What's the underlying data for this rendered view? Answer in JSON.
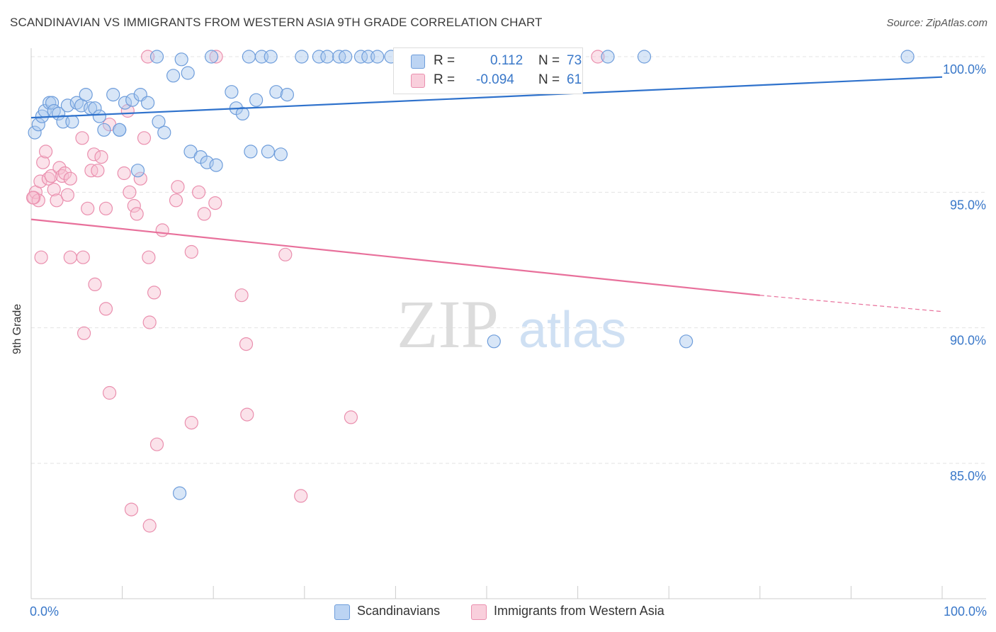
{
  "title": "SCANDINAVIAN VS IMMIGRANTS FROM WESTERN ASIA 9TH GRADE CORRELATION CHART",
  "source": "Source: ZipAtlas.com",
  "watermark": {
    "zip": "ZIP",
    "atlas": "atlas"
  },
  "legend_top": [
    {
      "r_label": "R =",
      "r_value": "0.112",
      "n_label": "N =",
      "n_value": "73"
    },
    {
      "r_label": "R =",
      "r_value": "-0.094",
      "n_label": "N =",
      "n_value": "61"
    }
  ],
  "colors": {
    "blue_fill": "#a9c7ee",
    "blue_stroke": "#6e9ddb",
    "blue_line": "#2f72cc",
    "pink_fill": "#f6bfd0",
    "pink_stroke": "#ea8fae",
    "pink_line": "#e8709b",
    "axis_text": "#3a78c9",
    "grid": "#e3e3e3"
  },
  "chart_data": {
    "type": "scatter",
    "title": "SCANDINAVIAN VS IMMIGRANTS FROM WESTERN ASIA 9TH GRADE CORRELATION CHART",
    "xlabel": "",
    "ylabel": "9th Grade",
    "xlim": [
      0,
      100
    ],
    "ylim": [
      80.5,
      100.5
    ],
    "x_tick_labels": [
      "0.0%",
      "100.0%"
    ],
    "y_ticks": [
      85,
      90,
      95,
      100
    ],
    "y_tick_labels": [
      "85.0%",
      "90.0%",
      "95.0%",
      "100.0%"
    ],
    "grid": true,
    "legend_position": "bottom",
    "series": [
      {
        "name": "Scandinavians",
        "color": "#6e9ddb",
        "trend": {
          "x": [
            0,
            100
          ],
          "y": [
            97.75,
            99.25
          ]
        },
        "points": [
          [
            0.4,
            97.2
          ],
          [
            0.8,
            97.5
          ],
          [
            1.2,
            97.8
          ],
          [
            1.5,
            98.0
          ],
          [
            2.0,
            98.3
          ],
          [
            2.3,
            98.3
          ],
          [
            2.5,
            98.0
          ],
          [
            3.0,
            97.9
          ],
          [
            3.5,
            97.6
          ],
          [
            4.0,
            98.2
          ],
          [
            4.5,
            97.6
          ],
          [
            5.0,
            98.3
          ],
          [
            5.5,
            98.2
          ],
          [
            6.0,
            98.6
          ],
          [
            6.5,
            98.1
          ],
          [
            7.0,
            98.1
          ],
          [
            7.5,
            97.8
          ],
          [
            8.0,
            97.3
          ],
          [
            9.7,
            97.3
          ],
          [
            9.7,
            97.3
          ],
          [
            9.0,
            98.6
          ],
          [
            10.3,
            98.3
          ],
          [
            11.1,
            98.4
          ],
          [
            12.0,
            98.6
          ],
          [
            12.8,
            98.3
          ],
          [
            14.0,
            97.6
          ],
          [
            14.6,
            97.2
          ],
          [
            11.7,
            95.8
          ],
          [
            15.6,
            99.3
          ],
          [
            17.2,
            99.4
          ],
          [
            17.5,
            96.5
          ],
          [
            18.6,
            96.3
          ],
          [
            19.3,
            96.1
          ],
          [
            20.3,
            96.0
          ],
          [
            22.0,
            98.7
          ],
          [
            22.5,
            98.1
          ],
          [
            23.2,
            97.9
          ],
          [
            24.1,
            96.5
          ],
          [
            24.7,
            98.4
          ],
          [
            26.0,
            96.5
          ],
          [
            26.9,
            98.7
          ],
          [
            27.4,
            96.4
          ],
          [
            28.1,
            98.6
          ],
          [
            13.8,
            100.0
          ],
          [
            16.5,
            99.9
          ],
          [
            19.8,
            100.0
          ],
          [
            23.9,
            100.0
          ],
          [
            25.3,
            100.0
          ],
          [
            26.3,
            100.0
          ],
          [
            29.7,
            100.0
          ],
          [
            31.6,
            100.0
          ],
          [
            32.5,
            100.0
          ],
          [
            33.8,
            100.0
          ],
          [
            34.5,
            100.0
          ],
          [
            36.2,
            100.0
          ],
          [
            37.0,
            100.0
          ],
          [
            38.0,
            100.0
          ],
          [
            39.5,
            100.0
          ],
          [
            41.0,
            100.0
          ],
          [
            42.5,
            100.0
          ],
          [
            43.2,
            100.0
          ],
          [
            44.3,
            100.0
          ],
          [
            47.0,
            100.0
          ],
          [
            50.8,
            100.0
          ],
          [
            52.5,
            100.0
          ],
          [
            55.0,
            100.0
          ],
          [
            59.2,
            100.0
          ],
          [
            63.3,
            100.0
          ],
          [
            67.3,
            100.0
          ],
          [
            96.2,
            100.0
          ],
          [
            50.8,
            89.5
          ],
          [
            71.9,
            89.5
          ],
          [
            16.3,
            83.9
          ]
        ]
      },
      {
        "name": "Immigrants from Western Asia",
        "color": "#ea8fae",
        "trend": {
          "x": [
            0,
            80
          ],
          "y": [
            94.0,
            91.2
          ]
        },
        "trend_dashed": {
          "x": [
            80,
            100
          ],
          "y": [
            91.2,
            90.6
          ]
        },
        "points": [
          [
            0.3,
            94.8
          ],
          [
            0.5,
            95.0
          ],
          [
            0.8,
            94.7
          ],
          [
            1.0,
            95.4
          ],
          [
            1.3,
            96.1
          ],
          [
            1.6,
            96.5
          ],
          [
            1.9,
            95.5
          ],
          [
            2.2,
            95.6
          ],
          [
            2.5,
            95.1
          ],
          [
            2.8,
            94.7
          ],
          [
            3.1,
            95.9
          ],
          [
            3.4,
            95.6
          ],
          [
            3.7,
            95.7
          ],
          [
            4.0,
            94.9
          ],
          [
            4.3,
            95.5
          ],
          [
            5.6,
            97.0
          ],
          [
            6.2,
            94.4
          ],
          [
            6.6,
            95.8
          ],
          [
            6.9,
            96.4
          ],
          [
            7.3,
            95.8
          ],
          [
            7.7,
            96.3
          ],
          [
            8.2,
            94.4
          ],
          [
            8.6,
            97.5
          ],
          [
            10.2,
            95.7
          ],
          [
            10.8,
            95.0
          ],
          [
            11.3,
            94.5
          ],
          [
            11.6,
            94.2
          ],
          [
            12.0,
            95.5
          ],
          [
            12.4,
            97.0
          ],
          [
            10.6,
            98.0
          ],
          [
            12.8,
            100.0
          ],
          [
            20.3,
            100.0
          ],
          [
            62.2,
            100.0
          ],
          [
            14.4,
            93.6
          ],
          [
            15.9,
            94.7
          ],
          [
            16.1,
            95.2
          ],
          [
            17.6,
            92.8
          ],
          [
            18.4,
            95.0
          ],
          [
            19.0,
            94.2
          ],
          [
            20.2,
            94.6
          ],
          [
            1.1,
            92.6
          ],
          [
            4.3,
            92.6
          ],
          [
            5.7,
            92.6
          ],
          [
            7.0,
            91.6
          ],
          [
            8.2,
            90.7
          ],
          [
            5.8,
            89.8
          ],
          [
            12.9,
            92.6
          ],
          [
            13.5,
            91.3
          ],
          [
            13.0,
            90.2
          ],
          [
            23.1,
            91.2
          ],
          [
            23.6,
            89.4
          ],
          [
            27.9,
            92.7
          ],
          [
            8.6,
            87.6
          ],
          [
            17.6,
            86.5
          ],
          [
            23.7,
            86.8
          ],
          [
            35.1,
            86.7
          ],
          [
            13.8,
            85.7
          ],
          [
            11.0,
            83.3
          ],
          [
            13.0,
            82.7
          ],
          [
            29.6,
            83.8
          ],
          [
            0.2,
            94.8
          ]
        ]
      }
    ]
  },
  "legend_bottom": [
    {
      "label": "Scandinavians"
    },
    {
      "label": "Immigrants from Western Asia"
    }
  ]
}
